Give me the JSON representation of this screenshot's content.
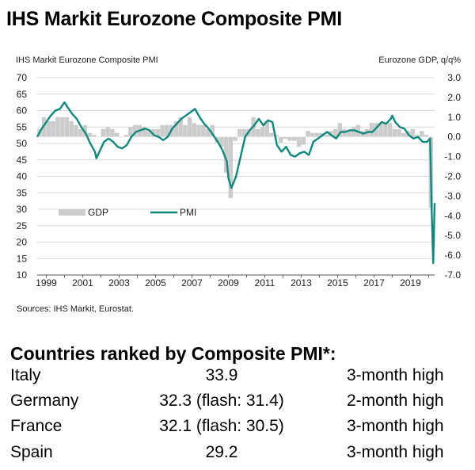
{
  "page": {
    "title": "IHS Markit Eurozone Composite PMI",
    "sources": "Sources: IHS Markit, Eurostat."
  },
  "chart_data": {
    "type": "line+bar",
    "title": "IHS Markit Eurozone Composite PMI",
    "left_axis_label": "IHS Markit Eurozone Composite  PMI",
    "right_axis_label": "Eurozone GDP, q/q%",
    "left_ylim": [
      10,
      70
    ],
    "right_ylim": [
      -7.0,
      3.0
    ],
    "left_ticks": [
      "70",
      "65",
      "60",
      "55",
      "50",
      "45",
      "40",
      "35",
      "30",
      "25",
      "20",
      "15",
      "10"
    ],
    "right_ticks": [
      "3.0",
      "2.0",
      "1.0",
      "0.0",
      "-1.0",
      "-2.0",
      "-3.0",
      "-4.0",
      "-5.0",
      "-6.0",
      "-7.0"
    ],
    "x_ticks": [
      "1999",
      "2001",
      "2003",
      "2005",
      "2007",
      "2009",
      "2011",
      "2013",
      "2015",
      "2017",
      "2019"
    ],
    "x_range": [
      1998.5,
      2020.33
    ],
    "legend": {
      "gdp": "GDP",
      "pmi": "PMI"
    },
    "colors": {
      "pmi": "#0e8a7c",
      "gdp": "#cccccc",
      "grid": "#d9d9d9"
    },
    "series": [
      {
        "name": "GDP",
        "axis": "right",
        "kind": "bar",
        "x": [
          1998.625,
          1998.875,
          1999.125,
          1999.375,
          1999.625,
          1999.875,
          2000.125,
          2000.375,
          2000.625,
          2000.875,
          2001.125,
          2001.375,
          2001.625,
          2001.875,
          2002.125,
          2002.375,
          2002.625,
          2002.875,
          2003.125,
          2003.375,
          2003.625,
          2003.875,
          2004.125,
          2004.375,
          2004.625,
          2004.875,
          2005.125,
          2005.375,
          2005.625,
          2005.875,
          2006.125,
          2006.375,
          2006.625,
          2006.875,
          2007.125,
          2007.375,
          2007.625,
          2007.875,
          2008.125,
          2008.375,
          2008.625,
          2008.875,
          2009.125,
          2009.375,
          2009.625,
          2009.875,
          2010.125,
          2010.375,
          2010.625,
          2010.875,
          2011.125,
          2011.375,
          2011.625,
          2011.875,
          2012.125,
          2012.375,
          2012.625,
          2012.875,
          2013.125,
          2013.375,
          2013.625,
          2013.875,
          2014.125,
          2014.375,
          2014.625,
          2014.875,
          2015.125,
          2015.375,
          2015.625,
          2015.875,
          2016.125,
          2016.375,
          2016.625,
          2016.875,
          2017.125,
          2017.375,
          2017.625,
          2017.875,
          2018.125,
          2018.375,
          2018.625,
          2018.875,
          2019.125,
          2019.375,
          2019.625,
          2019.875,
          2020.125
        ],
        "values": [
          0.4,
          1.0,
          0.8,
          0.8,
          1.0,
          1.0,
          1.0,
          0.8,
          0.6,
          0.4,
          0.6,
          0.2,
          0.1,
          0.0,
          0.4,
          0.5,
          0.4,
          0.2,
          0.0,
          0.1,
          0.5,
          0.6,
          0.6,
          0.5,
          0.3,
          0.4,
          0.4,
          0.6,
          0.6,
          0.6,
          0.8,
          1.0,
          0.6,
          1.0,
          0.7,
          0.6,
          0.6,
          0.4,
          0.6,
          -0.3,
          -0.5,
          -1.8,
          -3.1,
          -0.2,
          0.4,
          0.4,
          0.4,
          1.0,
          0.4,
          0.5,
          0.8,
          0.2,
          0.1,
          -0.3,
          -0.1,
          -0.2,
          -0.2,
          -0.5,
          -0.4,
          0.3,
          0.2,
          0.2,
          0.2,
          0.1,
          0.3,
          0.4,
          0.7,
          0.4,
          0.3,
          0.5,
          0.6,
          0.3,
          0.4,
          0.7,
          0.7,
          0.7,
          0.7,
          0.7,
          0.4,
          0.4,
          0.2,
          0.3,
          0.4,
          0.1,
          0.3,
          0.1,
          -3.6
        ]
      },
      {
        "name": "PMI",
        "axis": "left",
        "kind": "line",
        "x": [
          1998.5,
          1998.75,
          1999.0,
          1999.25,
          1999.5,
          1999.75,
          2000.0,
          2000.17,
          2000.42,
          2000.67,
          2000.92,
          2001.17,
          2001.42,
          2001.67,
          2001.75,
          2001.92,
          2002.17,
          2002.42,
          2002.67,
          2002.92,
          2003.17,
          2003.42,
          2003.67,
          2003.92,
          2004.17,
          2004.42,
          2004.67,
          2004.92,
          2005.17,
          2005.42,
          2005.67,
          2005.92,
          2006.17,
          2006.42,
          2006.67,
          2006.92,
          2007.17,
          2007.42,
          2007.67,
          2007.92,
          2008.17,
          2008.42,
          2008.67,
          2008.92,
          2009.0,
          2009.08,
          2009.17,
          2009.42,
          2009.67,
          2009.92,
          2010.17,
          2010.42,
          2010.67,
          2010.92,
          2011.17,
          2011.42,
          2011.67,
          2011.92,
          2012.17,
          2012.42,
          2012.67,
          2012.92,
          2013.17,
          2013.42,
          2013.67,
          2013.92,
          2014.17,
          2014.42,
          2014.67,
          2014.92,
          2015.17,
          2015.42,
          2015.67,
          2015.92,
          2016.17,
          2016.42,
          2016.67,
          2016.92,
          2017.17,
          2017.42,
          2017.67,
          2017.92,
          2018.0,
          2018.17,
          2018.42,
          2018.67,
          2018.92,
          2019.17,
          2019.42,
          2019.67,
          2019.92,
          2020.0,
          2020.08,
          2020.17,
          2020.25,
          2020.33
        ],
        "values": [
          52.0,
          54.5,
          56.5,
          58.5,
          60.0,
          60.5,
          62.5,
          61.0,
          59.0,
          57.5,
          55.0,
          53.0,
          50.0,
          47.5,
          45.5,
          47.5,
          50.5,
          51.5,
          50.5,
          49.0,
          48.5,
          49.5,
          52.0,
          53.5,
          54.0,
          54.5,
          54.0,
          52.5,
          52.0,
          51.0,
          52.0,
          54.5,
          56.0,
          57.5,
          58.5,
          59.5,
          60.5,
          58.0,
          56.0,
          54.5,
          52.5,
          50.5,
          48.0,
          44.5,
          39.5,
          38.0,
          36.5,
          40.0,
          46.0,
          52.0,
          54.0,
          55.5,
          57.5,
          55.5,
          57.0,
          56.5,
          49.5,
          47.5,
          49.0,
          46.5,
          46.0,
          47.0,
          47.5,
          46.5,
          50.5,
          51.5,
          52.5,
          53.5,
          52.5,
          51.5,
          53.5,
          53.5,
          54.0,
          54.0,
          53.5,
          53.0,
          53.5,
          53.5,
          55.0,
          56.5,
          56.0,
          57.5,
          58.5,
          56.5,
          55.0,
          54.5,
          52.5,
          51.5,
          52.0,
          50.5,
          50.5,
          51.0,
          51.5,
          29.7,
          13.6,
          31.9
        ]
      }
    ]
  },
  "ranking": {
    "title": "Countries ranked by Composite PMI*:",
    "rows": [
      {
        "country": "Italy",
        "value": "33.9",
        "note": "3-month high"
      },
      {
        "country": "Germany",
        "value": "32.3  (flash: 31.4)",
        "note": "2-month high"
      },
      {
        "country": "France",
        "value": "32.1 (flash: 30.5)",
        "note": "3-month high"
      },
      {
        "country": "Spain",
        "value": "29.2",
        "note": "3-month high"
      }
    ]
  }
}
